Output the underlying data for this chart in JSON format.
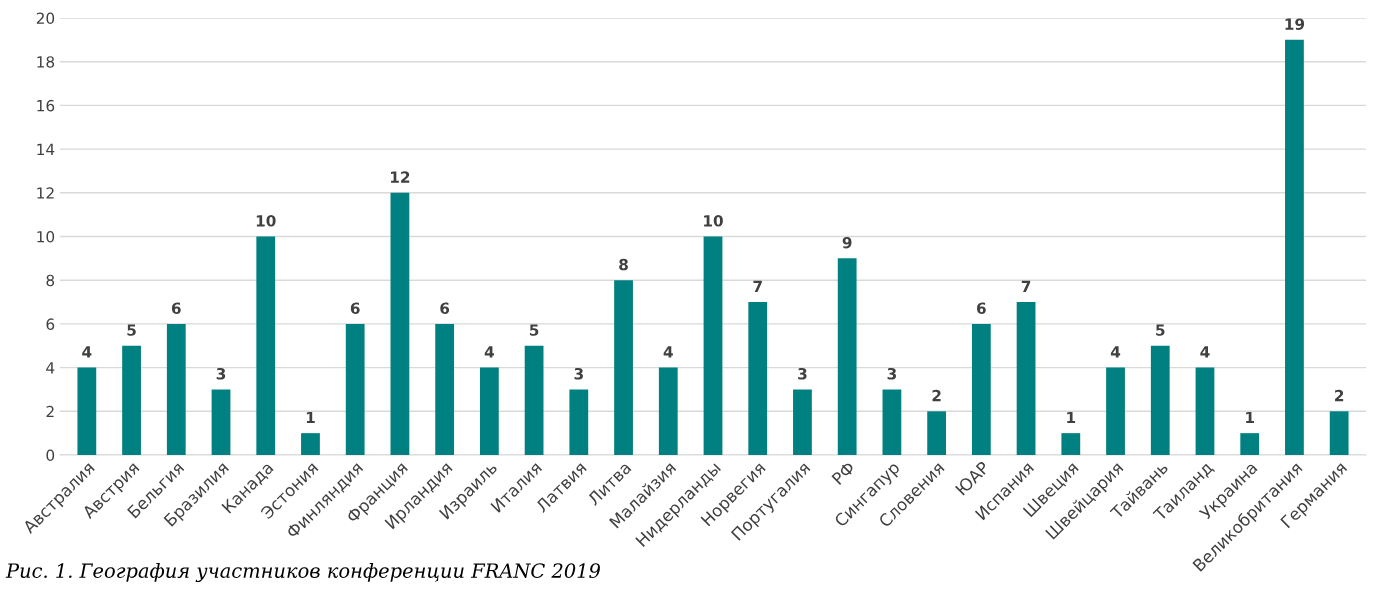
{
  "chart_data": {
    "type": "bar",
    "categories": [
      "Австралия",
      "Австрия",
      "Бельгия",
      "Бразилия",
      "Канада",
      "Эстония",
      "Финляндия",
      "Франция",
      "Ирландия",
      "Израиль",
      "Италия",
      "Латвия",
      "Литва",
      "Малайзия",
      "Нидерланды",
      "Норвегия",
      "Португалия",
      "РФ",
      "Сингапур",
      "Словения",
      "ЮАР",
      "Испания",
      "Швеция",
      "Швейцария",
      "Тайвань",
      "Таиланд",
      "Украина",
      "Великобритания",
      "Германия"
    ],
    "values": [
      4,
      5,
      6,
      3,
      10,
      1,
      6,
      12,
      6,
      4,
      5,
      3,
      8,
      4,
      10,
      7,
      3,
      9,
      3,
      2,
      6,
      7,
      1,
      4,
      5,
      4,
      1,
      19,
      2
    ],
    "color": "#008080",
    "ylim": [
      0,
      20
    ],
    "yticks": [
      0,
      2,
      4,
      6,
      8,
      10,
      12,
      14,
      16,
      18,
      20
    ],
    "grid": "y",
    "data_labels": true,
    "legend": false,
    "annotations": [
      "Рис. 1. География участников конференции FRANC 2019"
    ]
  }
}
